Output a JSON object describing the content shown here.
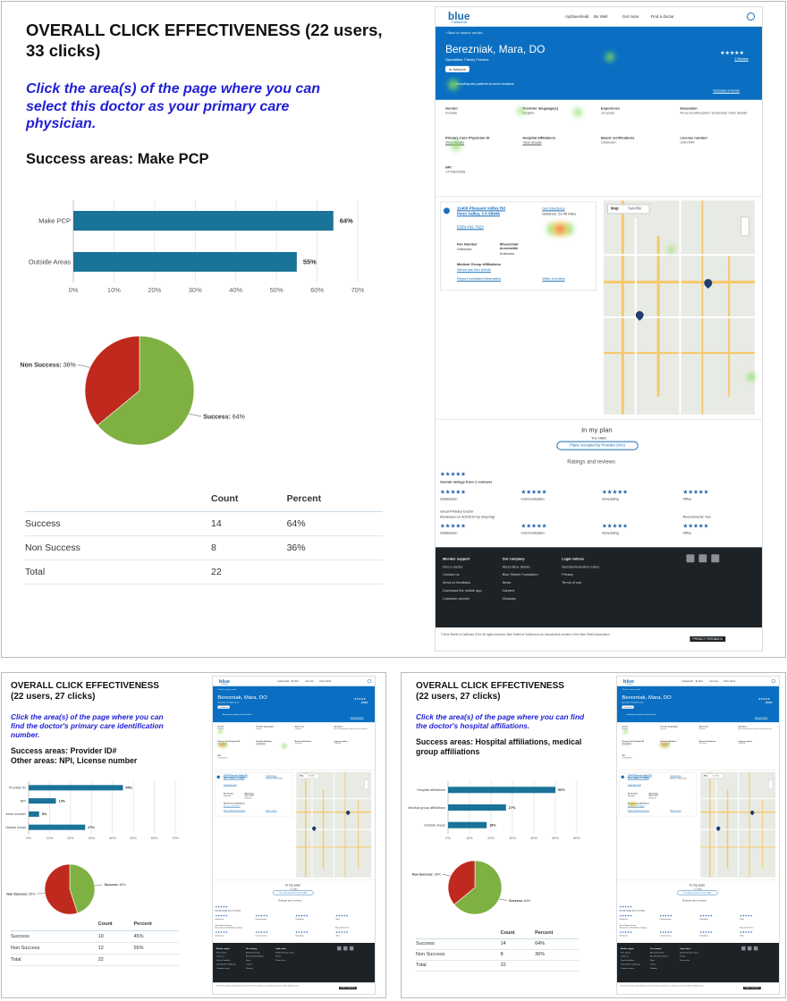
{
  "panels": [
    {
      "title_line1": "OVERALL CLICK EFFECTIVENESS (22 users,",
      "title_line2": "33 clicks)",
      "ask_line1": "Click the area(s) of the page where you can",
      "ask_line2": "select this doctor as your primary care",
      "ask_line3": "physician.",
      "success_line1": "Success areas: Make PCP",
      "success_line2": "",
      "table": {
        "headers": [
          "",
          "Count",
          "Percent"
        ],
        "rows": [
          [
            "Success",
            "14",
            "64%"
          ],
          [
            "Non Success",
            "8",
            "36%"
          ],
          [
            "Total",
            "22",
            ""
          ]
        ]
      }
    },
    {
      "title_line1": "OVERALL CLICK EFFECTIVENESS",
      "title_line2": "(22 users, 27 clicks)",
      "ask_line1": "Click the area(s) of the page where you can",
      "ask_line2": "find the doctor's primary care identification",
      "ask_line3": "number.",
      "success_line1": "Success areas: Provider ID#",
      "success_line2": "Other areas: NPI, License number",
      "table": {
        "headers": [
          "",
          "Count",
          "Percent"
        ],
        "rows": [
          [
            "Success",
            "10",
            "45%"
          ],
          [
            "Non Success",
            "12",
            "55%"
          ],
          [
            "Total",
            "22",
            ""
          ]
        ]
      }
    },
    {
      "title_line1": "OVERALL CLICK EFFECTIVENESS",
      "title_line2": "(22 users, 27 clicks)",
      "ask_line1": "Click the area(s) of the page where you can find",
      "ask_line2": "the doctor's hospital affiliations.",
      "ask_line3": "",
      "success_line1": "Success areas: Hospital affiliations, medical",
      "success_line2": "group affiliations",
      "table": {
        "headers": [
          "",
          "Count",
          "Percent"
        ],
        "rows": [
          [
            "Success",
            "14",
            "64%"
          ],
          [
            "Non Success",
            "8",
            "36%"
          ],
          [
            "Total",
            "22",
            ""
          ]
        ]
      }
    }
  ],
  "chart_data": [
    {
      "type": "bar",
      "orientation": "horizontal",
      "categories": [
        "Make PCP",
        "Outside Areas"
      ],
      "values": [
        64,
        55
      ],
      "value_labels": [
        "64%",
        "55%"
      ],
      "xlim": [
        0,
        70
      ],
      "xticks": [
        "0%",
        "10%",
        "20%",
        "30%",
        "40%",
        "50%",
        "60%",
        "70%"
      ],
      "grid": true,
      "color": "#1a7398"
    },
    {
      "type": "pie",
      "labels": [
        "Success",
        "Non Success"
      ],
      "values": [
        64,
        36
      ],
      "slice_labels": [
        "Success: 64%",
        "Non Success: 36%"
      ],
      "colors": [
        "#7fb142",
        "#c0291d"
      ]
    },
    {
      "type": "bar",
      "orientation": "horizontal",
      "categories": [
        "Provider ID",
        "NPI",
        "License number",
        "Outside Areas"
      ],
      "values": [
        45,
        13,
        5,
        27
      ],
      "value_labels": [
        "45%",
        "13%",
        "5%",
        "27%"
      ],
      "xlim": [
        0,
        70
      ],
      "xticks": [
        "0%",
        "10%",
        "20%",
        "30%",
        "40%",
        "50%",
        "60%",
        "70%"
      ],
      "grid": true,
      "color": "#1a7398"
    },
    {
      "type": "pie",
      "labels": [
        "Success",
        "Non Success"
      ],
      "values": [
        45,
        55
      ],
      "slice_labels": [
        "Success: 45%",
        "Non Success: 55%"
      ],
      "colors": [
        "#7fb142",
        "#c0291d"
      ]
    },
    {
      "type": "bar",
      "orientation": "horizontal",
      "categories": [
        "Hospital affiliations",
        "Medical group affiliations",
        "Outside Areas"
      ],
      "values": [
        50,
        27,
        18
      ],
      "value_labels": [
        "50%",
        "27%",
        "18%"
      ],
      "xlim": [
        0,
        60
      ],
      "xticks": [
        "0%",
        "10%",
        "20%",
        "30%",
        "40%",
        "50%",
        "60%"
      ],
      "grid": true,
      "color": "#1a7398"
    },
    {
      "type": "pie",
      "labels": [
        "Success",
        "Non Success"
      ],
      "values": [
        64,
        36
      ],
      "slice_labels": [
        "Success: 64%",
        "Non Success: 36%"
      ],
      "colors": [
        "#7fb142",
        "#c0291d"
      ]
    }
  ],
  "site": {
    "logo": "blue",
    "logo_sub": "California",
    "nav": [
      "mybluesheild",
      "Be Well",
      "Get more",
      "Find a doctor"
    ],
    "back": "‹ Back to search results",
    "doctor": "Berezniak, Mara, DO",
    "specialties": "Specialties: Family Practice",
    "in_network": "In Network",
    "accepting": "Accepting new patients at some locations",
    "reviews_link": "1 Review",
    "glossary": "Glossary of terms",
    "fields": [
      {
        "label": "Gender",
        "value": "Female"
      },
      {
        "label": "Provider language(s)",
        "value": "English"
      },
      {
        "label": "Experience",
        "value": "16 years"
      },
      {
        "label": "Education",
        "value": "Nova Southeastern University View details"
      },
      {
        "label": "Primary Care Physician ID",
        "value": "View details"
      },
      {
        "label": "Hospital affiliations",
        "value": "View details"
      },
      {
        "label": "Board certifications",
        "value": "Unknown"
      },
      {
        "label": "License number",
        "value": "20A7940"
      },
      {
        "label": "NPI",
        "value": "1770520565"
      }
    ],
    "address1": "11400 Pleasant Valley Rd",
    "address2": "Penn Valley, CA 95946",
    "directions": "Get Directions",
    "distance": "Distance: 23.45 miles",
    "phone": "(530) 432-7023",
    "fax_label": "Fax Number",
    "fax": "Unknown",
    "wheelchair_label": "Wheelchair Accessible",
    "wheelchair": "Unknown",
    "medgroup_label": "Medical Group Affiliations",
    "medgroup": "Sierra-sac Bsc Admin",
    "report": "Report outdated information",
    "write_review": "Write a review",
    "map_tab": "Map",
    "satellite_tab": "Satellite",
    "plan_title": "In my plan",
    "plan_sub": "Trio HMO",
    "plan_btn": "Plans Accepted by Provider (N/A)",
    "ratings_title": "Ratings and reviews",
    "overall": "Overall ratings from 1 reviewer",
    "stars": "★★★★★",
    "rating_cats": [
      "Satisfaction",
      "Communication",
      "Scheduling",
      "Office"
    ],
    "review_title": "Great Primary Doctor",
    "review_meta": "Reviewed on 4/3/2019 by shopmgr",
    "recommend": "Recommend: Yes",
    "footer_cols": [
      {
        "title": "Member support",
        "items": [
          "Find a doctor",
          "Contact us",
          "Send us feedback",
          "Download the mobile app",
          "Customer service"
        ]
      },
      {
        "title": "Our company",
        "items": [
          "About Blue Shield",
          "Blue Shield Foundation",
          "News",
          "Careers",
          "Glossary"
        ]
      },
      {
        "title": "Legal notices",
        "items": [
          "Nondiscrimination notice",
          "Privacy",
          "Terms of use"
        ]
      }
    ],
    "copyright": "© Blue Shield of California 2019. All rights reserved. Blue Shield of California is an independent member of the Blue Shield Association.",
    "privacy": "PRIVACY FEEDBACK"
  }
}
